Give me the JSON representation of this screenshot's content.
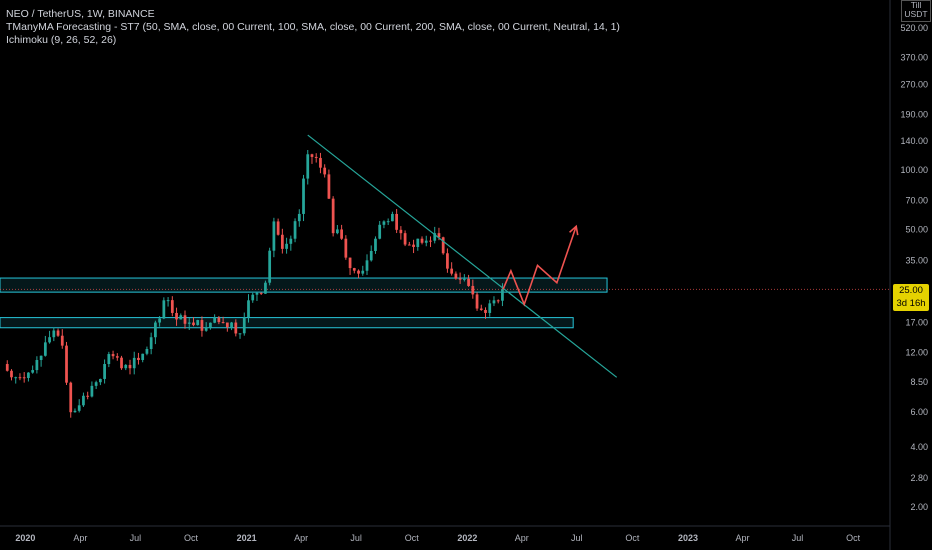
{
  "legend": {
    "symbol_line": "NEO / TetherUS, 1W, BINANCE",
    "indicator_1": "TManyMA Forecasting - ST7 (50, SMA, close, 00 Current, 100, SMA, close, 00 Current, 200, SMA, close, 00 Current, Neutral, 14, 1)",
    "indicator_2": "Ichimoku (9, 26, 52, 26)"
  },
  "currency": {
    "line1": "Till",
    "line2": "USDT"
  },
  "price_tag": {
    "price": "25.00",
    "countdown": "3d 16h"
  },
  "colors": {
    "up": "#26a69a",
    "down": "#ef5350",
    "zone": "#26c6da",
    "trendline": "#26a69a",
    "forecast": "#ef5350",
    "tag": "#e5d200"
  },
  "chart_data": {
    "type": "candlestick",
    "y_scale": "log",
    "ylim": [
      1.6,
      720
    ],
    "y_ticks": [
      "520.00",
      "370.00",
      "270.00",
      "190.00",
      "140.00",
      "100.00",
      "70.00",
      "50.00",
      "35.00",
      "25.00",
      "17.00",
      "12.00",
      "8.50",
      "6.00",
      "4.00",
      "2.80",
      "2.00"
    ],
    "x_ticks": [
      "2020",
      "Apr",
      "Jul",
      "Oct",
      "2021",
      "Apr",
      "Jul",
      "Oct",
      "2022",
      "Apr",
      "Jul",
      "Oct",
      "2023",
      "Apr",
      "Jul",
      "Oct"
    ],
    "x_tick_dates": [
      "2020-01-01",
      "2020-04-01",
      "2020-07-01",
      "2020-10-01",
      "2021-01-01",
      "2021-04-01",
      "2021-07-01",
      "2021-10-01",
      "2022-01-01",
      "2022-04-01",
      "2022-07-01",
      "2022-10-01",
      "2023-01-01",
      "2023-04-01",
      "2023-07-01",
      "2023-10-01"
    ],
    "xlim": [
      "2019-11-20",
      "2023-12-01"
    ],
    "closes": [
      {
        "date": "2019-11-25",
        "close": 10.5
      },
      {
        "date": "2019-12-09",
        "close": 9.0
      },
      {
        "date": "2019-12-23",
        "close": 9.0
      },
      {
        "date": "2020-01-06",
        "close": 9.5
      },
      {
        "date": "2020-01-20",
        "close": 11.0
      },
      {
        "date": "2020-02-03",
        "close": 13.5
      },
      {
        "date": "2020-02-17",
        "close": 15.5
      },
      {
        "date": "2020-03-02",
        "close": 13.0
      },
      {
        "date": "2020-03-16",
        "close": 6.0
      },
      {
        "date": "2020-03-30",
        "close": 6.5
      },
      {
        "date": "2020-04-13",
        "close": 7.2
      },
      {
        "date": "2020-04-27",
        "close": 8.5
      },
      {
        "date": "2020-05-11",
        "close": 10.5
      },
      {
        "date": "2020-05-25",
        "close": 11.5
      },
      {
        "date": "2020-06-08",
        "close": 10.0
      },
      {
        "date": "2020-06-22",
        "close": 10.0
      },
      {
        "date": "2020-07-06",
        "close": 11.0
      },
      {
        "date": "2020-07-20",
        "close": 12.5
      },
      {
        "date": "2020-08-03",
        "close": 17.0
      },
      {
        "date": "2020-08-17",
        "close": 22.0
      },
      {
        "date": "2020-08-31",
        "close": 19.0
      },
      {
        "date": "2020-09-14",
        "close": 18.5
      },
      {
        "date": "2020-09-28",
        "close": 17.0
      },
      {
        "date": "2020-10-12",
        "close": 17.5
      },
      {
        "date": "2020-10-26",
        "close": 16.0
      },
      {
        "date": "2020-11-09",
        "close": 18.0
      },
      {
        "date": "2020-11-23",
        "close": 17.0
      },
      {
        "date": "2020-12-07",
        "close": 17.0
      },
      {
        "date": "2020-12-21",
        "close": 15.0
      },
      {
        "date": "2021-01-04",
        "close": 22.0
      },
      {
        "date": "2021-01-18",
        "close": 24.0
      },
      {
        "date": "2021-02-01",
        "close": 27.0
      },
      {
        "date": "2021-02-15",
        "close": 55.0
      },
      {
        "date": "2021-03-01",
        "close": 40.0
      },
      {
        "date": "2021-03-15",
        "close": 45.0
      },
      {
        "date": "2021-03-29",
        "close": 60.0
      },
      {
        "date": "2021-04-12",
        "close": 120.0
      },
      {
        "date": "2021-04-26",
        "close": 115.0
      },
      {
        "date": "2021-05-10",
        "close": 95.0
      },
      {
        "date": "2021-05-24",
        "close": 48.0
      },
      {
        "date": "2021-06-07",
        "close": 45.0
      },
      {
        "date": "2021-06-21",
        "close": 32.0
      },
      {
        "date": "2021-07-05",
        "close": 30.0
      },
      {
        "date": "2021-07-19",
        "close": 35.0
      },
      {
        "date": "2021-08-02",
        "close": 45.0
      },
      {
        "date": "2021-08-16",
        "close": 55.0
      },
      {
        "date": "2021-08-30",
        "close": 60.0
      },
      {
        "date": "2021-09-13",
        "close": 48.0
      },
      {
        "date": "2021-09-27",
        "close": 42.0
      },
      {
        "date": "2021-10-11",
        "close": 45.0
      },
      {
        "date": "2021-10-25",
        "close": 44.0
      },
      {
        "date": "2021-11-08",
        "close": 48.0
      },
      {
        "date": "2021-11-22",
        "close": 38.0
      },
      {
        "date": "2021-12-06",
        "close": 30.0
      },
      {
        "date": "2021-12-20",
        "close": 28.0
      },
      {
        "date": "2022-01-03",
        "close": 26.0
      },
      {
        "date": "2022-01-17",
        "close": 20.0
      },
      {
        "date": "2022-01-31",
        "close": 19.0
      },
      {
        "date": "2022-02-14",
        "close": 22.0
      },
      {
        "date": "2022-02-28",
        "close": 25.0
      }
    ],
    "zones": [
      {
        "top": 28.5,
        "bottom": 24.2,
        "start": "2019-11-20",
        "end": "2022-08-20"
      },
      {
        "top": 18.0,
        "bottom": 16.0,
        "start": "2019-11-20",
        "end": "2022-06-25"
      }
    ],
    "trendline": {
      "start": {
        "date": "2021-04-12",
        "price": 150
      },
      "end": {
        "date": "2022-09-05",
        "price": 9.0
      }
    },
    "forecast_path": [
      {
        "date": "2022-03-01",
        "price": 25.0
      },
      {
        "date": "2022-03-14",
        "price": 31.0
      },
      {
        "date": "2022-04-05",
        "price": 21.0
      },
      {
        "date": "2022-04-27",
        "price": 33.0
      },
      {
        "date": "2022-05-29",
        "price": 27.0
      },
      {
        "date": "2022-06-30",
        "price": 52.0
      }
    ],
    "last_price": 25.0
  }
}
